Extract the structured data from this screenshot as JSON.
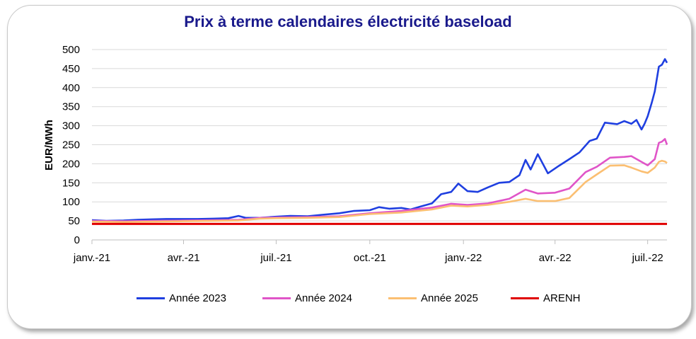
{
  "chart_data": {
    "type": "line",
    "title": "Prix à terme calendaires électricité baseload",
    "ylabel": "EUR/MWh",
    "xlabel": "",
    "ylim": [
      0,
      500
    ],
    "yticks": [
      0,
      50,
      100,
      150,
      200,
      250,
      300,
      350,
      400,
      450,
      500
    ],
    "xlim": [
      "2021-01-01",
      "2022-07-20"
    ],
    "xticks": [
      {
        "date": "2021-01-01",
        "label": "janv.-21"
      },
      {
        "date": "2021-04-01",
        "label": "avr.-21"
      },
      {
        "date": "2021-07-01",
        "label": "juil.-21"
      },
      {
        "date": "2021-10-01",
        "label": "oct.-21"
      },
      {
        "date": "2022-01-01",
        "label": "janv.-22"
      },
      {
        "date": "2022-04-01",
        "label": "avr.-22"
      },
      {
        "date": "2022-07-01",
        "label": "juil.-22"
      }
    ],
    "grid": "horizontal",
    "legend_position": "bottom",
    "series": [
      {
        "name": "Année 2023",
        "color": "#1f3fe0",
        "x": [
          "2021-01-01",
          "2021-01-15",
          "2021-02-01",
          "2021-02-15",
          "2021-03-01",
          "2021-03-15",
          "2021-04-01",
          "2021-04-15",
          "2021-05-01",
          "2021-05-15",
          "2021-05-25",
          "2021-06-01",
          "2021-06-15",
          "2021-07-01",
          "2021-07-15",
          "2021-08-01",
          "2021-08-15",
          "2021-09-01",
          "2021-09-15",
          "2021-10-01",
          "2021-10-10",
          "2021-10-20",
          "2021-11-01",
          "2021-11-10",
          "2021-11-20",
          "2021-12-01",
          "2021-12-10",
          "2021-12-20",
          "2021-12-27",
          "2022-01-05",
          "2022-01-15",
          "2022-01-25",
          "2022-02-05",
          "2022-02-15",
          "2022-02-25",
          "2022-03-03",
          "2022-03-08",
          "2022-03-15",
          "2022-03-25",
          "2022-04-05",
          "2022-04-15",
          "2022-04-25",
          "2022-05-05",
          "2022-05-12",
          "2022-05-20",
          "2022-06-01",
          "2022-06-08",
          "2022-06-15",
          "2022-06-20",
          "2022-06-25",
          "2022-06-28",
          "2022-07-01",
          "2022-07-05",
          "2022-07-08",
          "2022-07-12",
          "2022-07-15",
          "2022-07-18",
          "2022-07-20"
        ],
        "values": [
          52,
          50,
          51,
          53,
          54,
          55,
          55,
          55,
          56,
          57,
          63,
          58,
          58,
          61,
          63,
          62,
          66,
          70,
          76,
          78,
          86,
          82,
          84,
          80,
          88,
          96,
          120,
          126,
          148,
          128,
          126,
          138,
          150,
          152,
          170,
          210,
          185,
          225,
          175,
          195,
          212,
          230,
          260,
          266,
          308,
          304,
          312,
          305,
          315,
          290,
          305,
          325,
          360,
          390,
          455,
          460,
          475,
          465
        ]
      },
      {
        "name": "Année 2024",
        "color": "#e055c8",
        "x": [
          "2021-01-01",
          "2021-02-01",
          "2021-03-01",
          "2021-04-01",
          "2021-05-01",
          "2021-05-25",
          "2021-06-15",
          "2021-07-01",
          "2021-08-01",
          "2021-09-01",
          "2021-10-01",
          "2021-11-01",
          "2021-12-01",
          "2021-12-20",
          "2022-01-05",
          "2022-01-25",
          "2022-02-15",
          "2022-03-03",
          "2022-03-15",
          "2022-04-01",
          "2022-04-15",
          "2022-05-01",
          "2022-05-12",
          "2022-05-25",
          "2022-06-08",
          "2022-06-15",
          "2022-06-25",
          "2022-07-01",
          "2022-07-08",
          "2022-07-12",
          "2022-07-15",
          "2022-07-18",
          "2022-07-20"
        ],
        "values": [
          50,
          49,
          50,
          51,
          52,
          53,
          58,
          59,
          60,
          62,
          70,
          76,
          85,
          95,
          92,
          96,
          108,
          132,
          122,
          124,
          135,
          178,
          192,
          216,
          218,
          220,
          205,
          196,
          212,
          255,
          258,
          265,
          250
        ]
      },
      {
        "name": "Année 2025",
        "color": "#fbbf72",
        "x": [
          "2021-01-01",
          "2021-02-01",
          "2021-03-01",
          "2021-04-01",
          "2021-05-01",
          "2021-05-25",
          "2021-06-15",
          "2021-07-01",
          "2021-08-01",
          "2021-09-01",
          "2021-10-01",
          "2021-11-01",
          "2021-12-01",
          "2021-12-20",
          "2022-01-05",
          "2022-01-25",
          "2022-02-15",
          "2022-03-03",
          "2022-03-15",
          "2022-04-01",
          "2022-04-15",
          "2022-05-01",
          "2022-05-12",
          "2022-05-25",
          "2022-06-08",
          "2022-06-15",
          "2022-06-25",
          "2022-07-01",
          "2022-07-08",
          "2022-07-12",
          "2022-07-15",
          "2022-07-18",
          "2022-07-20"
        ],
        "values": [
          48,
          47,
          48,
          49,
          50,
          51,
          56,
          57,
          58,
          60,
          68,
          72,
          80,
          90,
          88,
          92,
          100,
          108,
          102,
          102,
          110,
          152,
          172,
          195,
          196,
          190,
          180,
          176,
          190,
          205,
          208,
          206,
          202
        ]
      },
      {
        "name": "ARENH",
        "color": "#e00000",
        "x": [
          "2021-01-01",
          "2022-07-20"
        ],
        "values": [
          42,
          42
        ]
      }
    ]
  }
}
